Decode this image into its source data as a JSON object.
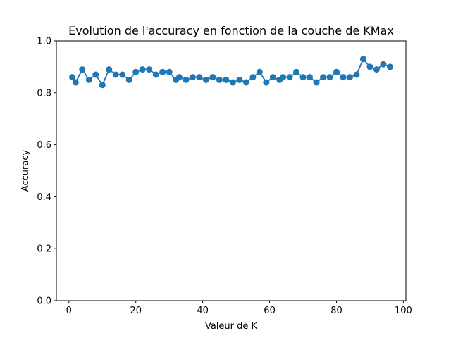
{
  "chart_data": {
    "type": "line",
    "title": "Evolution de l'accuracy en fonction de la couche de KMax",
    "xlabel": "Valeur de K",
    "ylabel": "Accuracy",
    "xlim": [
      -3.75,
      100.75
    ],
    "ylim": [
      0.0,
      1.0
    ],
    "xticks": [
      0,
      20,
      40,
      60,
      80,
      100
    ],
    "xtick_labels": [
      "0",
      "20",
      "40",
      "60",
      "80",
      "100"
    ],
    "yticks": [
      0.0,
      0.2,
      0.4,
      0.6,
      0.8,
      1.0
    ],
    "ytick_labels": [
      "0.0",
      "0.2",
      "0.4",
      "0.6",
      "0.8",
      "1.0"
    ],
    "grid": false,
    "color": "#1f77b4",
    "marker": "circle",
    "series": [
      {
        "name": "accuracy",
        "x": [
          1,
          2,
          4,
          6,
          8,
          10,
          12,
          14,
          16,
          18,
          20,
          22,
          24,
          26,
          28,
          30,
          32,
          33,
          35,
          37,
          39,
          41,
          43,
          45,
          47,
          49,
          51,
          53,
          55,
          57,
          59,
          61,
          63,
          64,
          66,
          68,
          70,
          72,
          74,
          76,
          78,
          80,
          82,
          84,
          86,
          88,
          90,
          92,
          94,
          96
        ],
        "y": [
          0.86,
          0.84,
          0.89,
          0.85,
          0.87,
          0.83,
          0.89,
          0.87,
          0.87,
          0.85,
          0.88,
          0.89,
          0.89,
          0.87,
          0.88,
          0.88,
          0.85,
          0.86,
          0.85,
          0.86,
          0.86,
          0.85,
          0.86,
          0.85,
          0.85,
          0.84,
          0.85,
          0.84,
          0.86,
          0.88,
          0.84,
          0.86,
          0.85,
          0.86,
          0.86,
          0.88,
          0.86,
          0.86,
          0.84,
          0.86,
          0.86,
          0.88,
          0.86,
          0.86,
          0.87,
          0.93,
          0.9,
          0.89,
          0.91,
          0.9
        ]
      }
    ]
  }
}
